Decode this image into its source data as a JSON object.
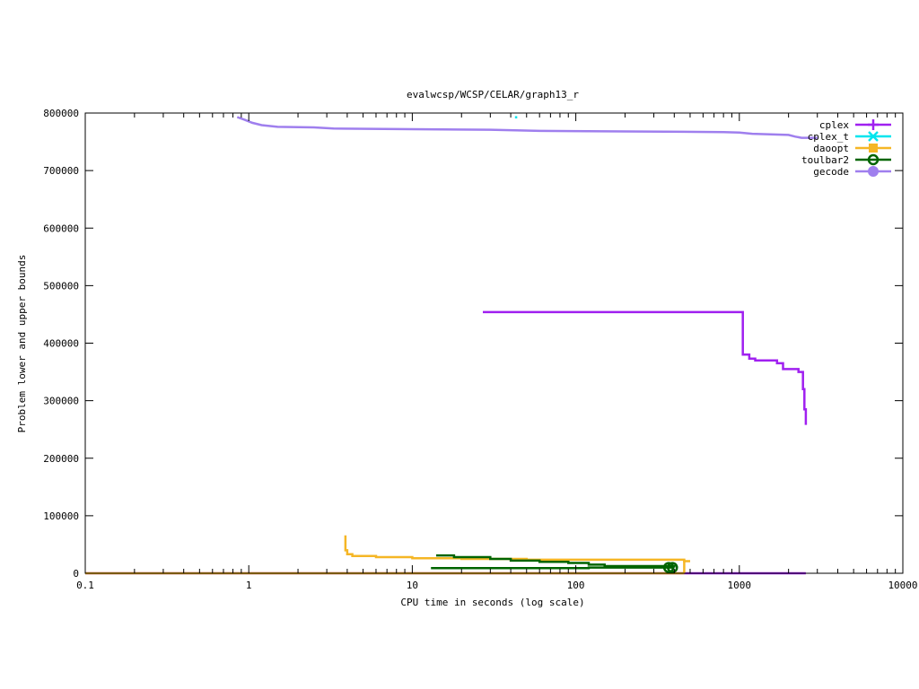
{
  "chart_data": {
    "type": "line",
    "title": "evalwcsp/WCSP/CELAR/graph13_r",
    "xlabel": "CPU time in seconds (log scale)",
    "ylabel": "Problem lower and upper bounds",
    "x_scale": "log",
    "xlim": [
      0.1,
      10000
    ],
    "ylim": [
      0,
      800000
    ],
    "x_ticks": [
      {
        "value": 0.1,
        "label": "0.1"
      },
      {
        "value": 1,
        "label": "1"
      },
      {
        "value": 10,
        "label": "10"
      },
      {
        "value": 100,
        "label": "100"
      },
      {
        "value": 1000,
        "label": "1000"
      },
      {
        "value": 10000,
        "label": "10000"
      }
    ],
    "y_ticks": [
      {
        "value": 0,
        "label": "0"
      },
      {
        "value": 100000,
        "label": "100000"
      },
      {
        "value": 200000,
        "label": "200000"
      },
      {
        "value": 300000,
        "label": "300000"
      },
      {
        "value": 400000,
        "label": "400000"
      },
      {
        "value": 500000,
        "label": "500000"
      },
      {
        "value": 600000,
        "label": "600000"
      },
      {
        "value": 700000,
        "label": "700000"
      },
      {
        "value": 800000,
        "label": "800000"
      }
    ],
    "grid": false,
    "legend_position": "top-right",
    "series": [
      {
        "name": "cplex",
        "color": "#a020f0",
        "marker": "plus",
        "lines": [
          [
            [
              27,
              454000
            ],
            [
              1050,
              454000
            ],
            [
              1050,
              380000
            ],
            [
              1150,
              380000
            ],
            [
              1150,
              373000
            ],
            [
              1250,
              373000
            ],
            [
              1250,
              370000
            ],
            [
              1700,
              370000
            ],
            [
              1700,
              365000
            ],
            [
              1850,
              365000
            ],
            [
              1850,
              355000
            ],
            [
              2300,
              355000
            ],
            [
              2300,
              350000
            ],
            [
              2450,
              350000
            ],
            [
              2450,
              320000
            ],
            [
              2500,
              320000
            ],
            [
              2500,
              285000
            ],
            [
              2550,
              285000
            ],
            [
              2550,
              258000
            ]
          ],
          [
            [
              0.1,
              0
            ],
            [
              2550,
              0
            ]
          ]
        ]
      },
      {
        "name": "cplex_t",
        "color": "#00e5ee",
        "marker": "cross",
        "points": [
          [
            43,
            793000
          ]
        ]
      },
      {
        "name": "daoopt",
        "color": "#f5b625",
        "marker": "square",
        "lines": [
          [
            [
              3.9,
              66000
            ],
            [
              3.9,
              40000
            ],
            [
              4.0,
              40000
            ],
            [
              4.0,
              33000
            ],
            [
              4.3,
              33000
            ],
            [
              4.3,
              30000
            ],
            [
              6,
              30000
            ],
            [
              6,
              28000
            ],
            [
              10,
              28000
            ],
            [
              10,
              26000
            ],
            [
              20,
              26000
            ],
            [
              20,
              25000
            ],
            [
              50,
              25000
            ],
            [
              50,
              23500
            ],
            [
              460,
              23500
            ],
            [
              460,
              21000
            ],
            [
              500,
              21000
            ]
          ],
          [
            [
              460,
              23500
            ],
            [
              460,
              0
            ]
          ],
          [
            [
              0.1,
              0
            ],
            [
              460,
              0
            ]
          ]
        ]
      },
      {
        "name": "toulbar2",
        "color": "#006400",
        "marker": "circle",
        "lines": [
          [
            [
              14,
              31000
            ],
            [
              18,
              31000
            ],
            [
              18,
              28000
            ],
            [
              30,
              28000
            ],
            [
              30,
              25000
            ],
            [
              40,
              25000
            ],
            [
              40,
              22000
            ],
            [
              60,
              22000
            ],
            [
              60,
              20000
            ],
            [
              90,
              20000
            ],
            [
              90,
              18000
            ],
            [
              120,
              18000
            ],
            [
              120,
              15000
            ],
            [
              150,
              15000
            ],
            [
              150,
              12500
            ],
            [
              400,
              12500
            ],
            [
              400,
              10000
            ]
          ],
          [
            [
              13,
              9000
            ],
            [
              120,
              9000
            ],
            [
              120,
              10000
            ],
            [
              400,
              10000
            ]
          ]
        ],
        "points": [
          [
            370,
            10000
          ],
          [
            390,
            10000
          ]
        ]
      },
      {
        "name": "gecode",
        "color": "#9f7fee",
        "marker": "filled-circle",
        "lines": [
          [
            [
              0.85,
              793000
            ],
            [
              0.95,
              788000
            ],
            [
              1.05,
              783000
            ],
            [
              1.2,
              779000
            ],
            [
              1.5,
              776000
            ],
            [
              2.5,
              775000
            ],
            [
              3.3,
              773000
            ],
            [
              10,
              772000
            ],
            [
              30,
              771000
            ],
            [
              60,
              769000
            ],
            [
              200,
              768000
            ],
            [
              800,
              767000
            ],
            [
              1000,
              766000
            ],
            [
              1200,
              764000
            ],
            [
              2000,
              762000
            ],
            [
              2200,
              759000
            ],
            [
              2400,
              757000
            ],
            [
              3000,
              757000
            ]
          ]
        ]
      }
    ]
  }
}
